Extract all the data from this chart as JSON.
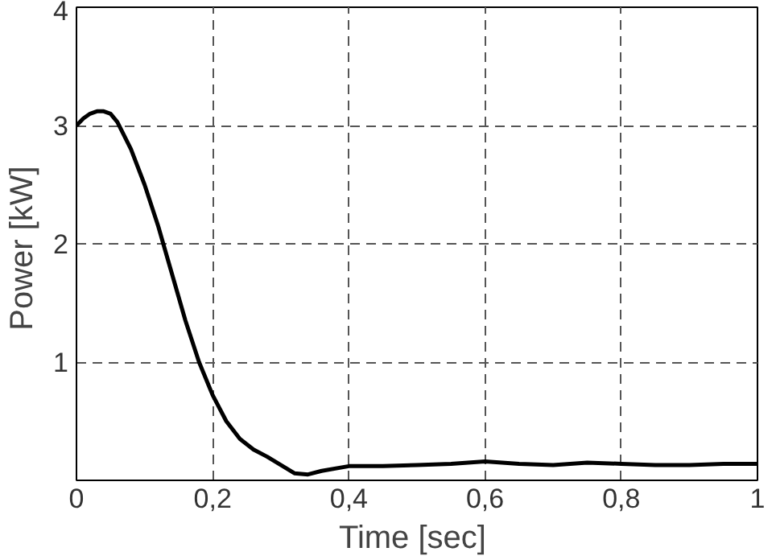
{
  "chart_data": {
    "type": "line",
    "xlabel": "Time  [sec]",
    "ylabel": "Power  [kW]",
    "x": [
      0,
      0.01,
      0.02,
      0.03,
      0.04,
      0.05,
      0.06,
      0.08,
      0.1,
      0.12,
      0.14,
      0.16,
      0.18,
      0.2,
      0.22,
      0.24,
      0.26,
      0.28,
      0.3,
      0.32,
      0.34,
      0.36,
      0.4,
      0.45,
      0.5,
      0.55,
      0.6,
      0.65,
      0.7,
      0.75,
      0.8,
      0.85,
      0.9,
      0.95,
      1.0
    ],
    "series": [
      {
        "color": "#000000",
        "values": [
          3.0,
          3.06,
          3.1,
          3.12,
          3.12,
          3.1,
          3.03,
          2.8,
          2.5,
          2.15,
          1.75,
          1.35,
          1.0,
          0.72,
          0.5,
          0.35,
          0.26,
          0.2,
          0.13,
          0.06,
          0.05,
          0.08,
          0.12,
          0.12,
          0.13,
          0.14,
          0.16,
          0.14,
          0.13,
          0.15,
          0.14,
          0.13,
          0.13,
          0.14,
          0.14
        ]
      }
    ],
    "xlim": [
      0,
      1
    ],
    "ylim": [
      0,
      4
    ],
    "xticks": [
      0,
      {
        "value": 0.2,
        "label": "0,2"
      },
      {
        "value": 0.4,
        "label": "0,4"
      },
      {
        "value": 0.6,
        "label": "0,6"
      },
      {
        "value": 0.8,
        "label": "0,8"
      },
      1
    ],
    "yticks": [
      {
        "value": 0,
        "label": null
      },
      1,
      2,
      3,
      4
    ],
    "grid": true,
    "marker": "none",
    "line_style": "solid"
  }
}
